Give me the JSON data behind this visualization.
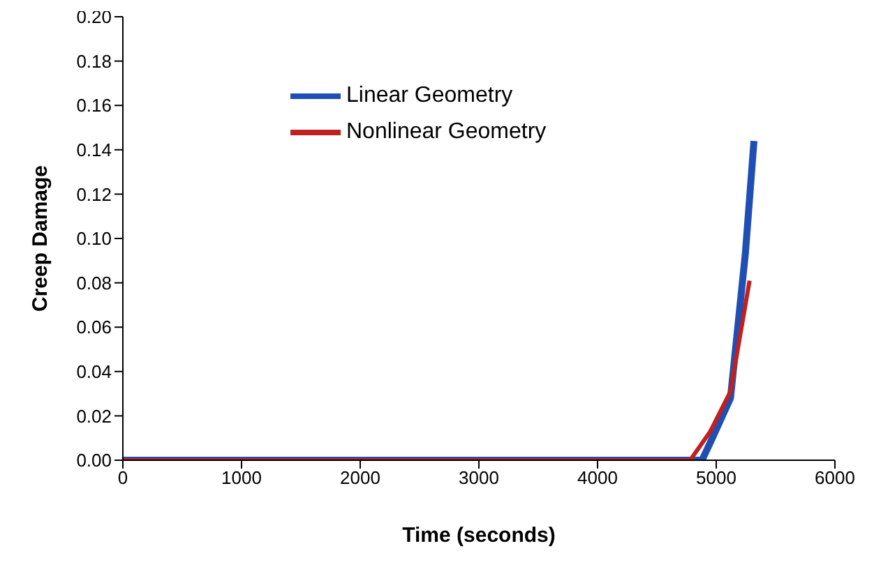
{
  "chart_data": {
    "type": "line",
    "xlabel": "Time (seconds)",
    "ylabel": "Creep Damage",
    "xlim": [
      0,
      6000
    ],
    "xticks": [
      0,
      1000,
      2000,
      3000,
      4000,
      5000,
      6000
    ],
    "ylim": [
      0,
      0.2
    ],
    "yticks": [
      {
        "value": 0,
        "label": "0.00"
      },
      {
        "value": 0.02,
        "label": "0.02"
      },
      {
        "value": 0.04,
        "label": "0.04"
      },
      {
        "value": 0.06,
        "label": "0.06"
      },
      {
        "value": 0.08,
        "label": "0.08"
      },
      {
        "value": 0.1,
        "label": "0.10"
      },
      {
        "value": 0.12,
        "label": "0.12"
      },
      {
        "value": 0.14,
        "label": "0.14"
      },
      {
        "value": 0.16,
        "label": "0.16"
      },
      {
        "value": 0.18,
        "label": "0.18"
      },
      {
        "value": 0.2,
        "label": "0.20"
      }
    ],
    "grid": false,
    "legend": "top left",
    "marker": "none",
    "line_style": "solid",
    "series": [
      {
        "name": "Linear Geometry",
        "color": "#1f4fb4",
        "x": [
          0,
          4880,
          4950,
          5120,
          5245,
          5318
        ],
        "values": [
          0,
          0,
          0.008,
          0.028,
          0.093,
          0.144
        ]
      },
      {
        "name": "Nonlinear Geometry",
        "color": "#c0201e",
        "x": [
          0,
          4780,
          4950,
          5120,
          5281
        ],
        "values": [
          0,
          0,
          0.013,
          0.031,
          0.081
        ]
      }
    ]
  }
}
